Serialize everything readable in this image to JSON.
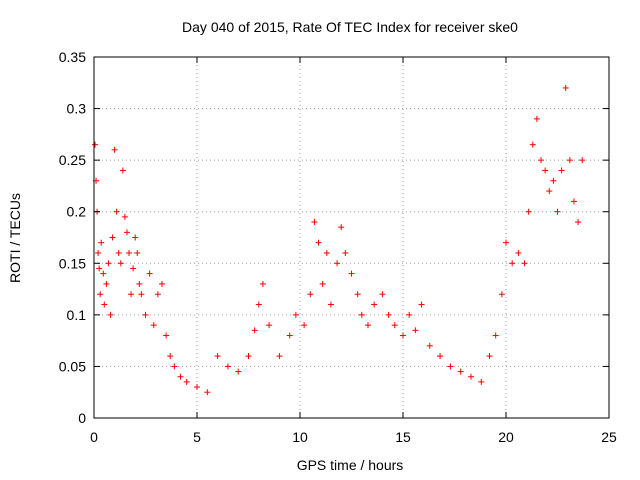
{
  "chart_data": {
    "type": "scatter",
    "title": "Day 040 of 2015, Rate Of TEC Index for receiver ske0",
    "xlabel": "GPS time / hours",
    "ylabel": "ROTI / TECUs",
    "xlim": [
      0,
      25
    ],
    "ylim": [
      0,
      0.35
    ],
    "xticks": [
      0,
      5,
      10,
      15,
      20,
      25
    ],
    "xtick_labels": [
      "0",
      "5",
      "10",
      "15",
      "20",
      "25"
    ],
    "yticks": [
      0,
      0.05,
      0.1,
      0.15,
      0.2,
      0.25,
      0.3,
      0.35
    ],
    "ytick_labels": [
      "0",
      "0.05",
      "0.1",
      "0.15",
      "0.2",
      "0.25",
      "0.3",
      "0.35"
    ],
    "grid": true,
    "marker": "+",
    "series": [
      {
        "color": "#ff0000",
        "x": [
          0.05,
          0.1,
          0.15,
          0.2,
          0.25,
          0.3,
          0.35,
          0.45,
          0.5,
          0.6,
          0.7,
          0.8,
          0.9,
          1.0,
          1.1,
          1.2,
          1.3,
          1.4,
          1.5,
          1.6,
          1.7,
          1.8,
          1.9,
          2.0,
          2.1,
          2.2,
          2.3,
          2.5,
          2.7,
          2.9,
          3.1,
          3.3,
          3.5,
          3.7,
          3.9,
          4.2,
          4.5,
          5.0,
          5.5,
          6.0,
          6.5,
          7.0,
          7.5,
          7.8,
          8.0,
          8.2,
          8.5,
          9.0,
          9.5,
          9.8,
          10.2,
          10.5,
          10.7,
          10.9,
          11.1,
          11.3,
          11.5,
          11.8,
          12.0,
          12.2,
          12.5,
          12.8,
          13.0,
          13.3,
          13.6,
          14.0,
          14.3,
          14.6,
          15.0,
          15.3,
          15.6,
          15.9,
          16.3,
          16.8,
          17.3,
          17.8,
          18.3,
          18.8,
          19.2,
          19.5,
          19.8,
          20.0,
          20.3,
          20.6,
          20.9,
          21.1,
          21.3,
          21.5,
          21.7,
          21.9,
          22.1,
          22.3,
          22.5,
          22.7,
          22.9,
          23.1,
          23.3,
          23.5,
          23.7
        ],
        "y": [
          0.265,
          0.23,
          0.2,
          0.16,
          0.145,
          0.12,
          0.17,
          0.14,
          0.11,
          0.13,
          0.15,
          0.1,
          0.175,
          0.26,
          0.2,
          0.16,
          0.15,
          0.24,
          0.195,
          0.18,
          0.16,
          0.12,
          0.145,
          0.175,
          0.16,
          0.13,
          0.12,
          0.1,
          0.14,
          0.09,
          0.12,
          0.13,
          0.08,
          0.06,
          0.05,
          0.04,
          0.035,
          0.03,
          0.025,
          0.06,
          0.05,
          0.045,
          0.06,
          0.085,
          0.11,
          0.13,
          0.09,
          0.06,
          0.08,
          0.1,
          0.09,
          0.12,
          0.19,
          0.17,
          0.13,
          0.16,
          0.11,
          0.15,
          0.185,
          0.16,
          0.14,
          0.12,
          0.1,
          0.09,
          0.11,
          0.12,
          0.1,
          0.09,
          0.08,
          0.1,
          0.085,
          0.11,
          0.07,
          0.06,
          0.05,
          0.045,
          0.04,
          0.035,
          0.06,
          0.08,
          0.12,
          0.17,
          0.15,
          0.16,
          0.15,
          0.2,
          0.265,
          0.29,
          0.25,
          0.24,
          0.22,
          0.23,
          0.2,
          0.24,
          0.32,
          0.25,
          0.21,
          0.19,
          0.25
        ]
      }
    ]
  }
}
